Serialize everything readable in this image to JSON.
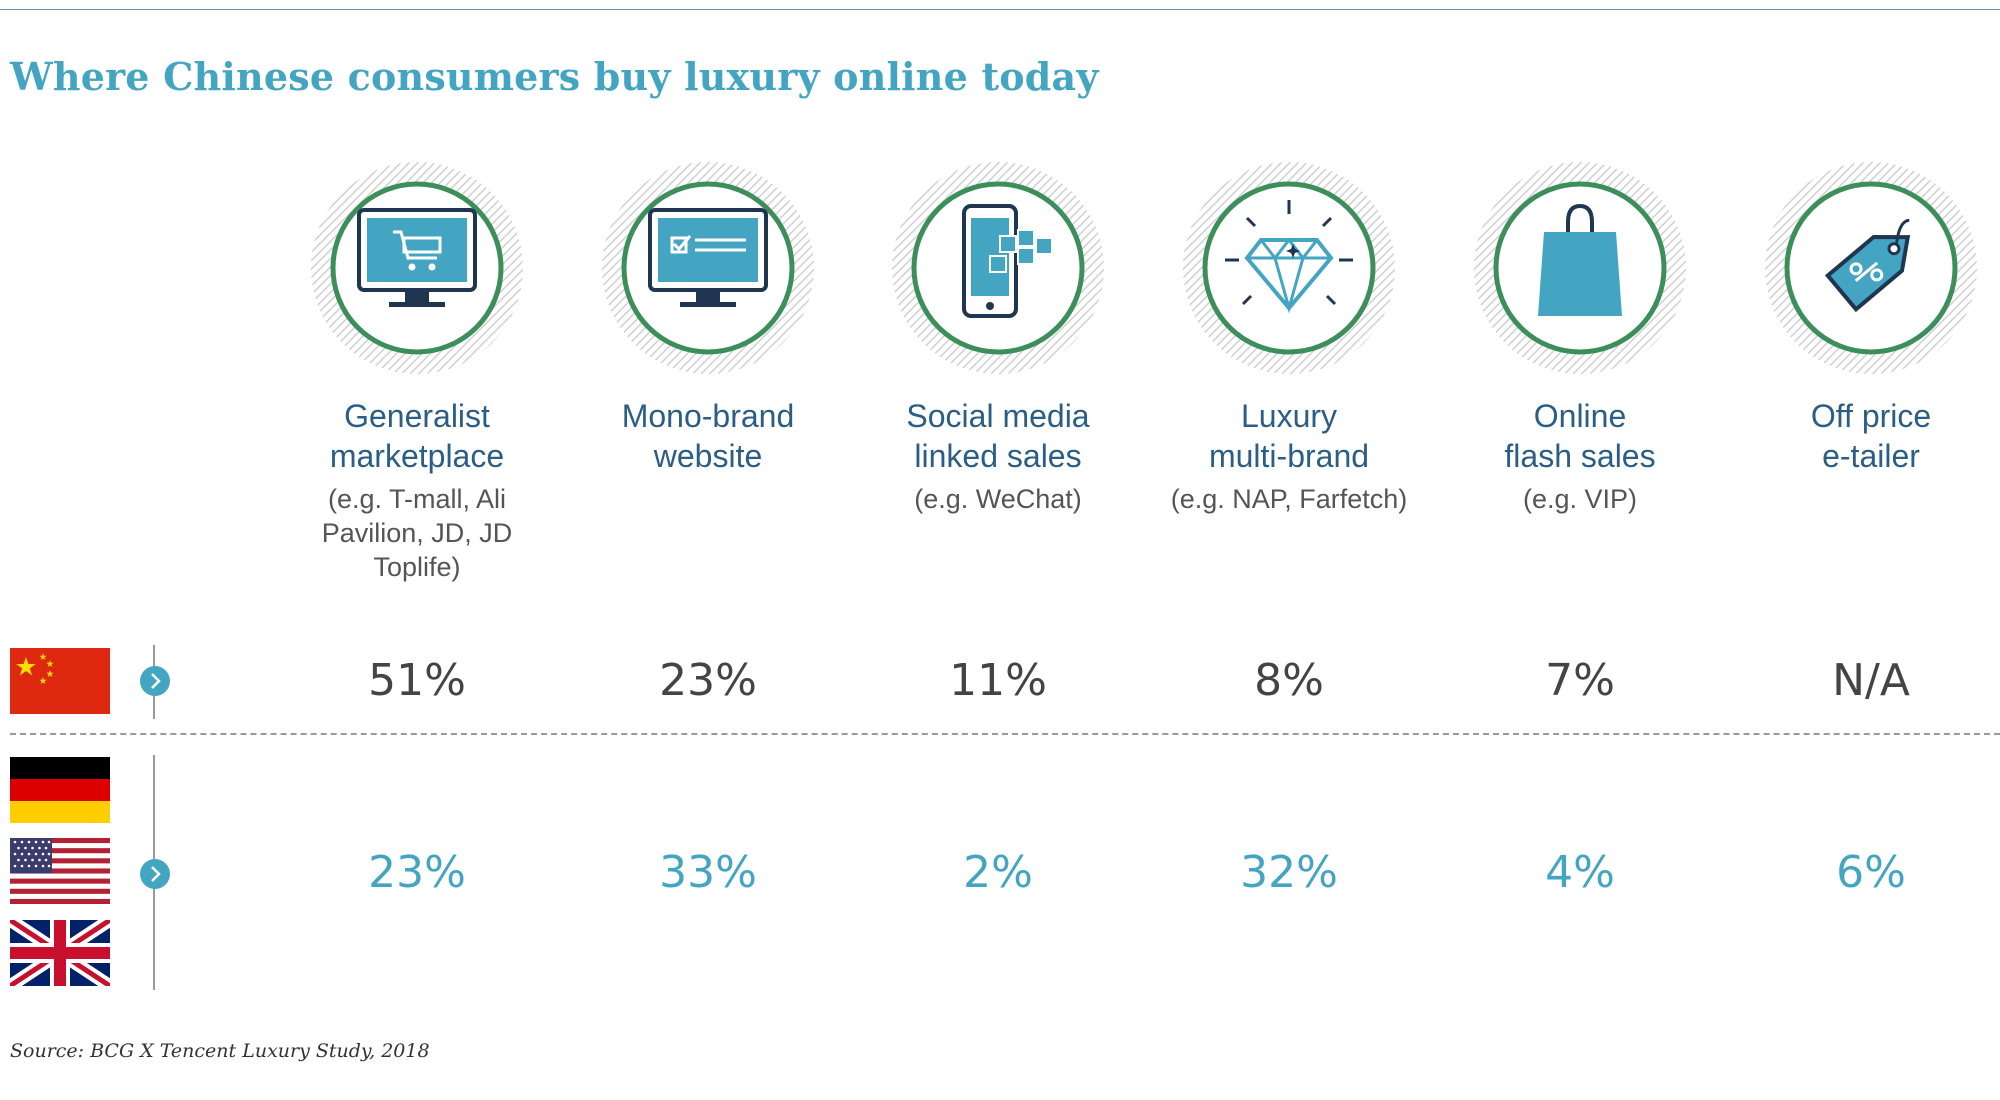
{
  "title": "Where Chinese consumers buy luxury online today",
  "source": "Source: BCG X Tencent Luxury Study, 2018",
  "colors": {
    "accent": "#44a5c2",
    "dark_text": "#444444",
    "label_blue": "#2b5e86",
    "ring_green": "#3c8f5a"
  },
  "chart_data": {
    "type": "table",
    "categories": [
      {
        "name_lines": [
          "Generalist",
          "marketplace"
        ],
        "example_lines": [
          "(e.g. T-mall, Ali",
          "Pavilion, JD, JD",
          "Toplife)"
        ],
        "icon": "computer-cart-icon"
      },
      {
        "name_lines": [
          "Mono-brand",
          "website"
        ],
        "example_lines": [],
        "icon": "computer-checklist-icon"
      },
      {
        "name_lines": [
          "Social media",
          "linked sales"
        ],
        "example_lines": [
          "(e.g. WeChat)"
        ],
        "icon": "smartphone-social-icon"
      },
      {
        "name_lines": [
          "Luxury",
          "multi-brand"
        ],
        "example_lines": [
          "(e.g. NAP, Farfetch)"
        ],
        "icon": "diamond-icon"
      },
      {
        "name_lines": [
          "Online",
          "flash sales"
        ],
        "example_lines": [
          "(e.g. VIP)"
        ],
        "icon": "shopping-bag-icon"
      },
      {
        "name_lines": [
          "Off price",
          "e-tailer"
        ],
        "example_lines": [],
        "icon": "price-tag-icon"
      }
    ],
    "series": [
      {
        "group": "China",
        "flags": [
          "china-flag-icon"
        ],
        "values": [
          "51%",
          "23%",
          "11%",
          "8%",
          "7%",
          "N/A"
        ]
      },
      {
        "group": "Germany, USA, UK",
        "flags": [
          "germany-flag-icon",
          "usa-flag-icon",
          "uk-flag-icon"
        ],
        "values": [
          "23%",
          "33%",
          "2%",
          "32%",
          "4%",
          "6%"
        ]
      }
    ]
  }
}
